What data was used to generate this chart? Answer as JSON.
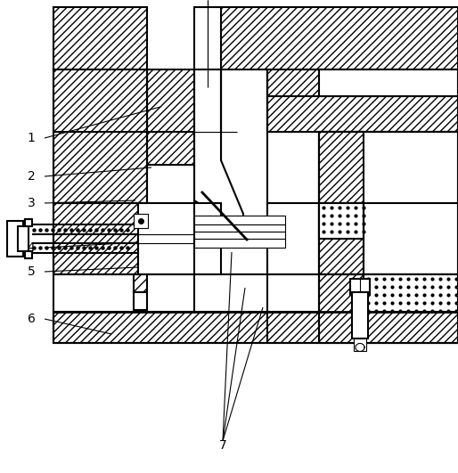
{
  "bg": "#ffffff",
  "lw": 1.5,
  "tlw": 0.8,
  "fw": 5.14,
  "fh": 5.31,
  "dpi": 100,
  "label_fs": 10
}
